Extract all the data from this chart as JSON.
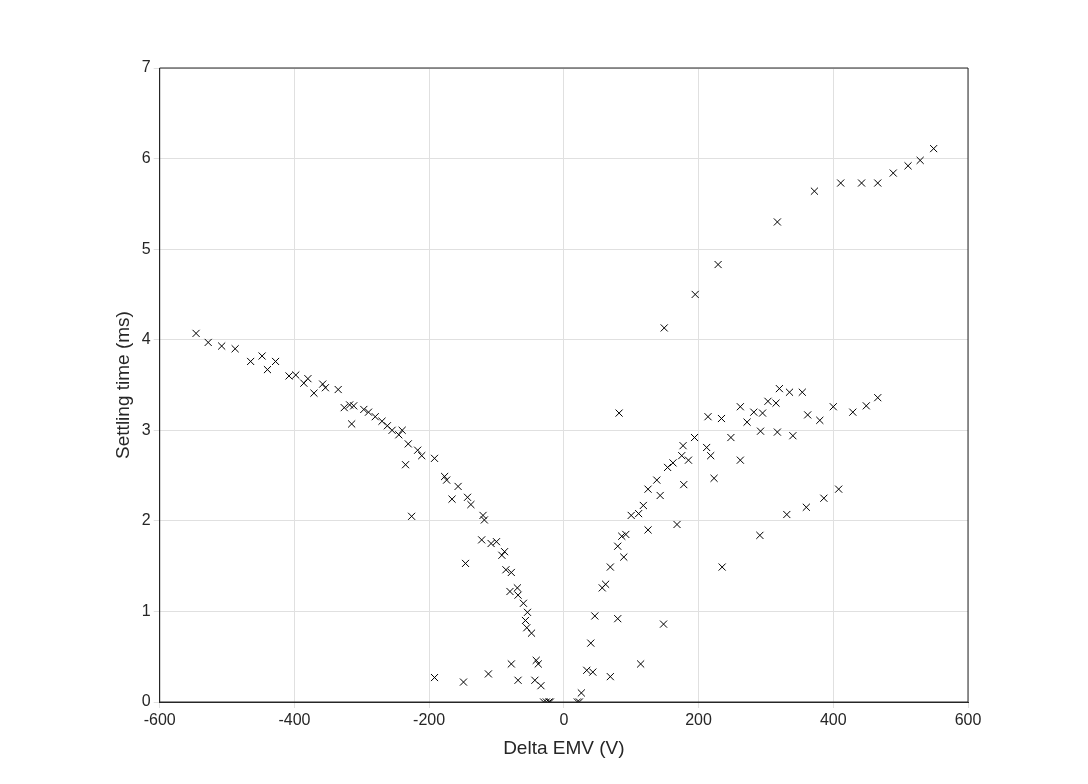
{
  "chart_data": {
    "type": "scatter",
    "xlabel": "Delta EMV (V)",
    "ylabel": "Settling time (ms)",
    "xlim": [
      -600,
      600
    ],
    "xticks": [
      -600,
      -400,
      -200,
      0,
      200,
      400,
      600
    ],
    "ylim": [
      0,
      7
    ],
    "yticks": [
      0,
      1,
      2,
      3,
      4,
      5,
      6,
      7
    ],
    "grid": true,
    "marker": "cross",
    "series": [
      {
        "color": "#000000",
        "x": [
          -546,
          -528,
          -508,
          -488,
          -465,
          -448,
          -440,
          -428,
          -408,
          -398,
          -386,
          -380,
          -371,
          -358,
          -354,
          -335,
          -326,
          -318,
          -312,
          -315,
          -297,
          -290,
          -280,
          -270,
          -262,
          -255,
          -245,
          -240,
          -235,
          -231,
          -226,
          -217,
          -211,
          -192,
          -177,
          -174,
          -166,
          -157,
          -146,
          -143,
          -138,
          -122,
          -120,
          -118,
          -108,
          -100,
          -92,
          -88,
          -86,
          -80,
          -78,
          -69,
          -68,
          -60,
          -57,
          -55,
          -54,
          -48,
          -41,
          -38,
          -78,
          -112,
          -68,
          -43,
          -34,
          -192,
          -149,
          -30,
          -26,
          -22,
          -20,
          23,
          26,
          20,
          34,
          43,
          69,
          40,
          46,
          80,
          148,
          114,
          57,
          62,
          69,
          89,
          80,
          86,
          92,
          125,
          168,
          100,
          111,
          118,
          125,
          138,
          143,
          154,
          162,
          178,
          175,
          185,
          177,
          194,
          82,
          214,
          234,
          212,
          218,
          223,
          248,
          262,
          262,
          272,
          235,
          282,
          295,
          303,
          315,
          320,
          335,
          354,
          292,
          317,
          340,
          362,
          380,
          400,
          429,
          449,
          466,
          291,
          331,
          360,
          386,
          408,
          149,
          195,
          229,
          317,
          372,
          411,
          442,
          466,
          489,
          511,
          529,
          549
        ],
        "values": [
          4.07,
          3.97,
          3.93,
          3.9,
          3.76,
          3.82,
          3.67,
          3.76,
          3.6,
          3.61,
          3.52,
          3.57,
          3.41,
          3.51,
          3.47,
          3.45,
          3.25,
          3.28,
          3.27,
          3.07,
          3.23,
          3.2,
          3.15,
          3.1,
          3.05,
          3.0,
          2.95,
          3.0,
          2.62,
          2.85,
          2.05,
          2.78,
          2.72,
          2.69,
          2.49,
          2.45,
          2.24,
          2.38,
          1.53,
          2.26,
          2.18,
          1.79,
          2.06,
          2.01,
          1.75,
          1.77,
          1.62,
          1.66,
          1.46,
          1.22,
          1.43,
          1.26,
          1.18,
          1.09,
          0.9,
          0.82,
          0.99,
          0.76,
          0.46,
          0.42,
          0.42,
          0.31,
          0.24,
          0.24,
          0.18,
          0.27,
          0.22,
          0,
          0,
          0,
          0,
          0,
          0.1,
          0,
          0.35,
          0.33,
          0.28,
          0.65,
          0.95,
          0.92,
          0.86,
          0.42,
          1.26,
          1.3,
          1.49,
          1.6,
          1.72,
          1.83,
          1.85,
          1.9,
          1.96,
          2.06,
          2.08,
          2.17,
          2.35,
          2.45,
          2.28,
          2.59,
          2.64,
          2.4,
          2.72,
          2.67,
          2.83,
          2.92,
          3.19,
          3.15,
          3.13,
          2.81,
          2.72,
          2.47,
          2.92,
          3.26,
          2.67,
          3.09,
          1.49,
          3.2,
          3.19,
          3.32,
          3.3,
          3.46,
          3.42,
          3.42,
          2.99,
          2.98,
          2.94,
          3.17,
          3.11,
          3.26,
          3.2,
          3.27,
          3.36,
          1.84,
          2.07,
          2.15,
          2.25,
          2.35,
          4.13,
          4.5,
          4.83,
          5.3,
          5.64,
          5.73,
          5.73,
          5.73,
          5.84,
          5.92,
          5.98,
          6.11
        ]
      }
    ]
  }
}
